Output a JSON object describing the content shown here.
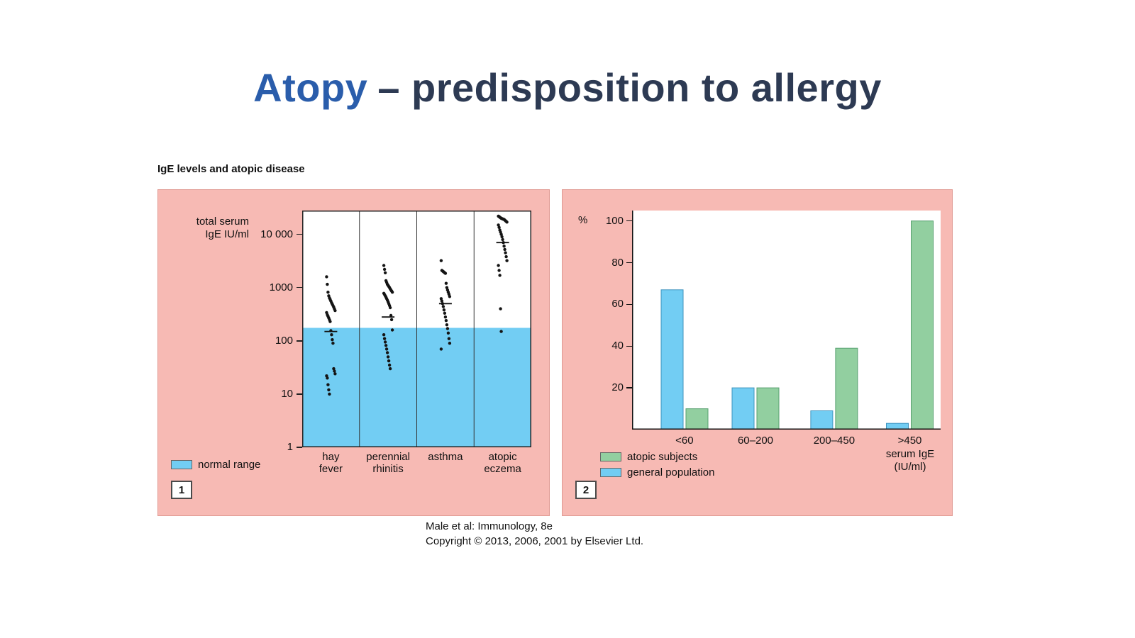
{
  "slide": {
    "title_highlight": "Atopy",
    "title_rest": "– predisposition to allergy"
  },
  "figure": {
    "heading": "IgE levels and atopic disease",
    "panel1_badge": "1",
    "panel2_badge": "2",
    "caption_line1": "Male et al: Immunology, 8e",
    "caption_line2": "Copyright © 2013, 2006, 2001 by Elsevier Ltd."
  },
  "colors": {
    "pink": "#f7bab4",
    "blue": "#72cdf3",
    "green": "#92cfa0",
    "title_highlight": "#2a5dab",
    "title_text": "#2d3a53"
  },
  "chart_data": [
    {
      "type": "scatter",
      "title": "IgE levels and atopic disease",
      "ylabel_lines": [
        "total serum",
        "IgE IU/ml"
      ],
      "yscale": "log",
      "ylim": [
        1,
        28000
      ],
      "yticks": [
        1,
        10,
        100,
        1000,
        10000
      ],
      "ytick_labels": [
        "1",
        "10",
        "100",
        "1000",
        "10 000"
      ],
      "normal_range_max": 175,
      "legend_label": "normal range",
      "groups": [
        {
          "label_lines": [
            "hay",
            "fever"
          ],
          "median": 150,
          "values": [
            1600,
            1150,
            820,
            700,
            640,
            600,
            560,
            520,
            490,
            460,
            430,
            400,
            370,
            340,
            310,
            290,
            270,
            250,
            230,
            155,
            130,
            105,
            90,
            30,
            27,
            24,
            22,
            20,
            15,
            12,
            10
          ]
        },
        {
          "label_lines": [
            "perennial",
            "rhinitis"
          ],
          "median": 280,
          "values": [
            2600,
            2200,
            1900,
            1350,
            1250,
            1150,
            1100,
            1050,
            1000,
            950,
            900,
            860,
            820,
            780,
            740,
            700,
            660,
            620,
            580,
            540,
            500,
            460,
            420,
            300,
            250,
            160,
            130,
            110,
            95,
            82,
            70,
            60,
            50,
            42,
            35,
            30
          ]
        },
        {
          "label_lines": [
            "asthma"
          ],
          "median": 500,
          "values": [
            3200,
            2100,
            2050,
            2000,
            1950,
            1900,
            1850,
            1200,
            1000,
            900,
            820,
            750,
            680,
            620,
            560,
            500,
            440,
            380,
            330,
            280,
            240,
            200,
            170,
            140,
            110,
            90,
            70
          ]
        },
        {
          "label_lines": [
            "atopic",
            "eczema"
          ],
          "median": 7000,
          "values": [
            22000,
            21500,
            21000,
            20500,
            20000,
            19800,
            19500,
            19200,
            19000,
            18500,
            18000,
            17500,
            17000,
            15000,
            13500,
            12000,
            11000,
            10000,
            9000,
            8000,
            7000,
            6000,
            5200,
            4500,
            3800,
            3200,
            2600,
            2100,
            1700,
            400,
            150
          ]
        }
      ]
    },
    {
      "type": "bar",
      "ylabel": "%",
      "ylim": [
        0,
        105
      ],
      "yticks": [
        20,
        40,
        60,
        80,
        100
      ],
      "categories": [
        "<60",
        "60–200",
        "200–450",
        ">450"
      ],
      "xlabel_lines": [
        "serum IgE",
        "(IU/ml)"
      ],
      "centers_frac": [
        0.17,
        0.4,
        0.655,
        0.9
      ],
      "series": [
        {
          "name": "general population",
          "color": "#72cdf3",
          "values": [
            67,
            20,
            9,
            3
          ]
        },
        {
          "name": "atopic subjects",
          "color": "#92cfa0",
          "values": [
            10,
            20,
            39,
            100
          ]
        }
      ]
    }
  ]
}
